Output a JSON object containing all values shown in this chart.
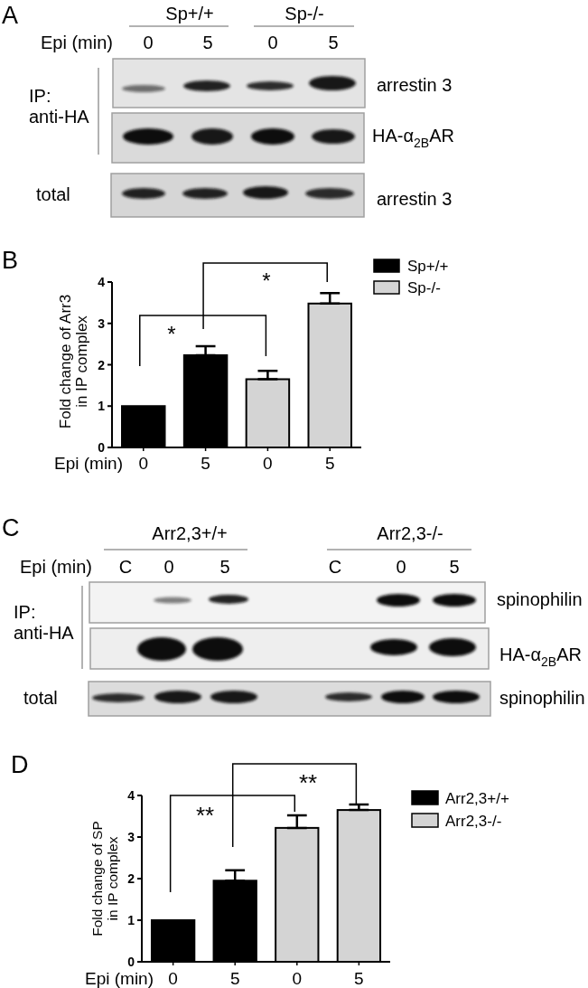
{
  "chart_data": [
    {
      "type": "other",
      "title": "A",
      "annotations": [
        "Sp+/+",
        "Sp-/-",
        "Epi (min)",
        "0",
        "5",
        "0",
        "5",
        "IP:",
        "anti-HA",
        "arrestin 3",
        "HA-α$_{2B}$AR",
        "total",
        "arrestin 3"
      ]
    },
    {
      "type": "bar",
      "title": "B",
      "categories": [
        "0",
        "5",
        "0",
        "5"
      ],
      "xlabel": "Epi (min)",
      "ylabel": "Fold change of Arr3\nin IP complex",
      "series": [
        {
          "name": "Sp+/+",
          "color": "#000000",
          "values": [
            1,
            2.23,
            null,
            null
          ],
          "errors": [
            null,
            [
              2.23,
              2.45
            ],
            null,
            null
          ]
        },
        {
          "name": "Sp-/-",
          "color": "#d4d4d4",
          "values": [
            null,
            null,
            1.65,
            3.48
          ],
          "errors": [
            null,
            null,
            [
              1.65,
              1.85
            ],
            [
              3.48,
              3.73
            ]
          ]
        }
      ],
      "ylim": [
        0,
        4
      ],
      "yticks": [
        0,
        1,
        2,
        3,
        4
      ],
      "legend": "top right",
      "annotations": [
        "*",
        "*"
      ]
    },
    {
      "type": "other",
      "title": "C",
      "annotations": [
        "Arr2,3+/+",
        "Arr2,3-/-",
        "Epi (min)",
        "C",
        "0",
        "5",
        "C",
        "0",
        "5",
        "IP:",
        "anti-HA",
        "spinophilin",
        "HA-α$_{2B}$AR",
        "total",
        "spinophilin"
      ]
    },
    {
      "type": "bar",
      "title": "D",
      "categories": [
        "0",
        "5",
        "0",
        "5"
      ],
      "xlabel": "Epi (min)",
      "ylabel": "Fold change of SP\nin IP complex",
      "series": [
        {
          "name": "Arr2,3+/+",
          "color": "#000000",
          "values": [
            1,
            1.95,
            null,
            null
          ],
          "errors": [
            null,
            [
              1.95,
              2.2
            ],
            null,
            null
          ]
        },
        {
          "name": "Arr2,3-/-",
          "color": "#d4d4d4",
          "values": [
            null,
            null,
            3.22,
            3.65
          ],
          "errors": [
            null,
            null,
            [
              3.22,
              3.52
            ],
            [
              3.65,
              3.78
            ]
          ]
        }
      ],
      "ylim": [
        0,
        4
      ],
      "yticks": [
        0,
        1,
        2,
        3,
        4
      ],
      "legend": "top right",
      "annotations": [
        "**",
        "**"
      ]
    }
  ]
}
